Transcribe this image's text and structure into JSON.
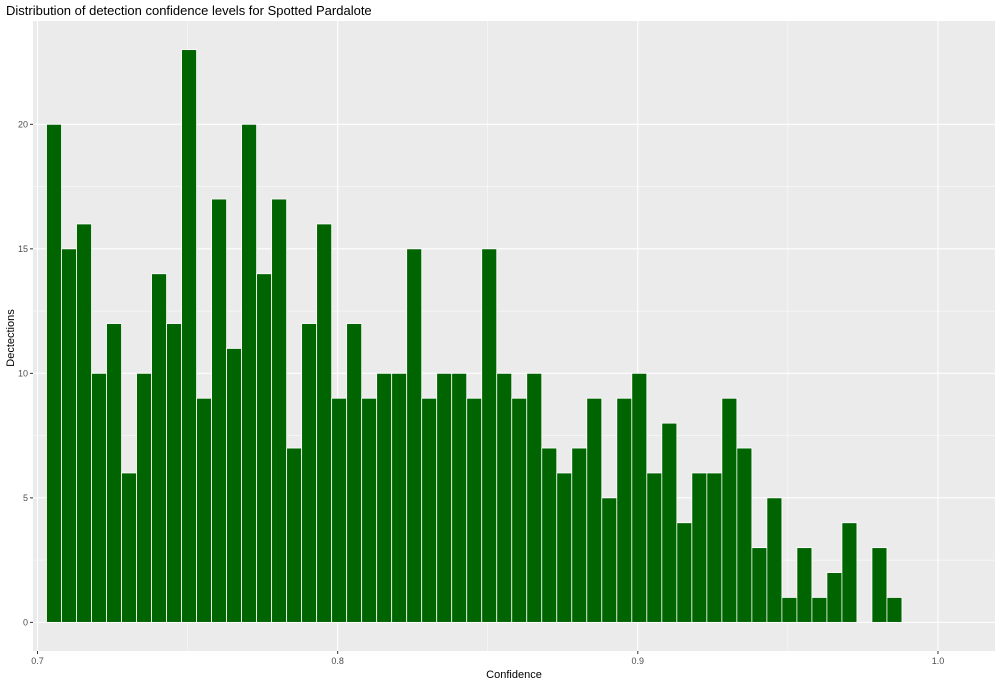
{
  "chart_data": {
    "type": "bar",
    "title": "Distribution of detection confidence levels for Spotted Pardalote",
    "xlabel": "Confidence",
    "ylabel": "Dectections",
    "x_ticks": [
      0.7,
      0.8,
      0.9,
      1.0
    ],
    "x_tick_labels": [
      "0.7",
      "0.8",
      "0.9",
      "1.0"
    ],
    "y_ticks": [
      0,
      5,
      10,
      15,
      20
    ],
    "y_tick_labels": [
      "0",
      "5",
      "10",
      "15",
      "20"
    ],
    "xlim": [
      0.6985,
      1.019
    ],
    "ylim": [
      -1.15,
      24.15
    ],
    "bin_start": 0.703,
    "bin_width": 0.005,
    "bin_centers": [
      0.7055,
      0.7105,
      0.7155,
      0.7205,
      0.7255,
      0.7305,
      0.7355,
      0.7405,
      0.7455,
      0.7505,
      0.7555,
      0.7605,
      0.7655,
      0.7705,
      0.7755,
      0.7805,
      0.7855,
      0.7905,
      0.7955,
      0.8005,
      0.8055,
      0.8105,
      0.8155,
      0.8205,
      0.8255,
      0.8305,
      0.8355,
      0.8405,
      0.8455,
      0.8505,
      0.8555,
      0.8605,
      0.8655,
      0.8705,
      0.8755,
      0.8805,
      0.8855,
      0.8905,
      0.8955,
      0.9005,
      0.9055,
      0.9105,
      0.9155,
      0.9205,
      0.9255,
      0.9305,
      0.9355,
      0.9405,
      0.9455,
      0.9505,
      0.9555,
      0.9605,
      0.9655,
      0.9705,
      0.9755,
      0.9805,
      0.9855
    ],
    "values": [
      20,
      15,
      16,
      10,
      12,
      6,
      10,
      14,
      12,
      23,
      9,
      17,
      11,
      20,
      14,
      17,
      7,
      12,
      16,
      9,
      12,
      9,
      10,
      10,
      15,
      9,
      10,
      10,
      9,
      15,
      10,
      9,
      10,
      7,
      6,
      7,
      9,
      5,
      9,
      10,
      6,
      8,
      4,
      6,
      6,
      9,
      7,
      3,
      5,
      1,
      3,
      1,
      2,
      4,
      0,
      3,
      1
    ],
    "bar_color": "#006400",
    "bar_edge_color": "#ffffff",
    "panel_background": "#ebebeb",
    "grid_color": "#ffffff",
    "grid": true,
    "legend": false
  }
}
